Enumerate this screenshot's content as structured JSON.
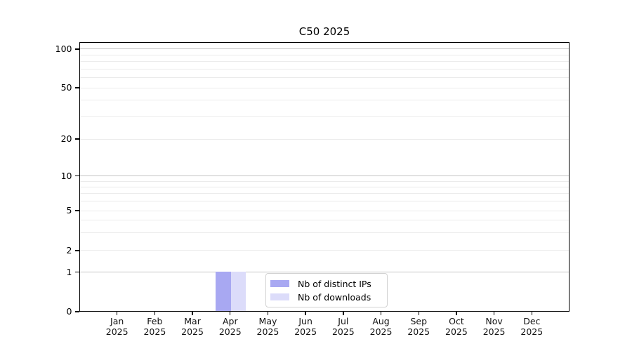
{
  "title": "C50 2025",
  "colors": {
    "bar_distinct_ips": "#a8a8f2",
    "bar_downloads": "#dcdcfa",
    "grid_minor": "#ebebeb",
    "grid_decade": "#c5c5c5",
    "axis": "#000000",
    "legend_border": "#d2d2d2",
    "background": "#ffffff"
  },
  "chart_data": {
    "type": "bar",
    "title": "C50 2025",
    "categories": [
      "Jan",
      "Feb",
      "Mar",
      "Apr",
      "May",
      "Jun",
      "Jul",
      "Aug",
      "Sep",
      "Oct",
      "Nov",
      "Dec"
    ],
    "x_year_label": "2025",
    "series": [
      {
        "name": "Nb of distinct IPs",
        "color": "#a8a8f2",
        "values": [
          0,
          0,
          0,
          1,
          0,
          0,
          0,
          0,
          0,
          0,
          0,
          0
        ]
      },
      {
        "name": "Nb of downloads",
        "color": "#dcdcfa",
        "values": [
          0,
          0,
          0,
          1,
          0,
          0,
          0,
          0,
          0,
          0,
          0,
          0
        ]
      }
    ],
    "y_axis": {
      "scale": "log-like above 1 with linear 0-1 segment",
      "ticks": [
        0,
        1,
        2,
        5,
        10,
        20,
        50,
        100
      ],
      "tick_fractions_from_top": {
        "0": 1.0,
        "1": 0.8536,
        "2": 0.7734,
        "5": 0.625,
        "10": 0.4961,
        "20": 0.3594,
        "50": 0.1693,
        "100": 0.026
      },
      "minor_gridline_values": [
        3,
        4,
        6,
        7,
        8,
        9,
        30,
        40,
        60,
        70,
        80,
        90
      ],
      "decade_gridline_values": [
        1,
        10,
        100
      ],
      "ylim": [
        0,
        100
      ]
    },
    "grid": true,
    "legend": {
      "position": "inside-bottom-center",
      "entries": [
        "Nb of distinct IPs",
        "Nb of downloads"
      ]
    }
  }
}
